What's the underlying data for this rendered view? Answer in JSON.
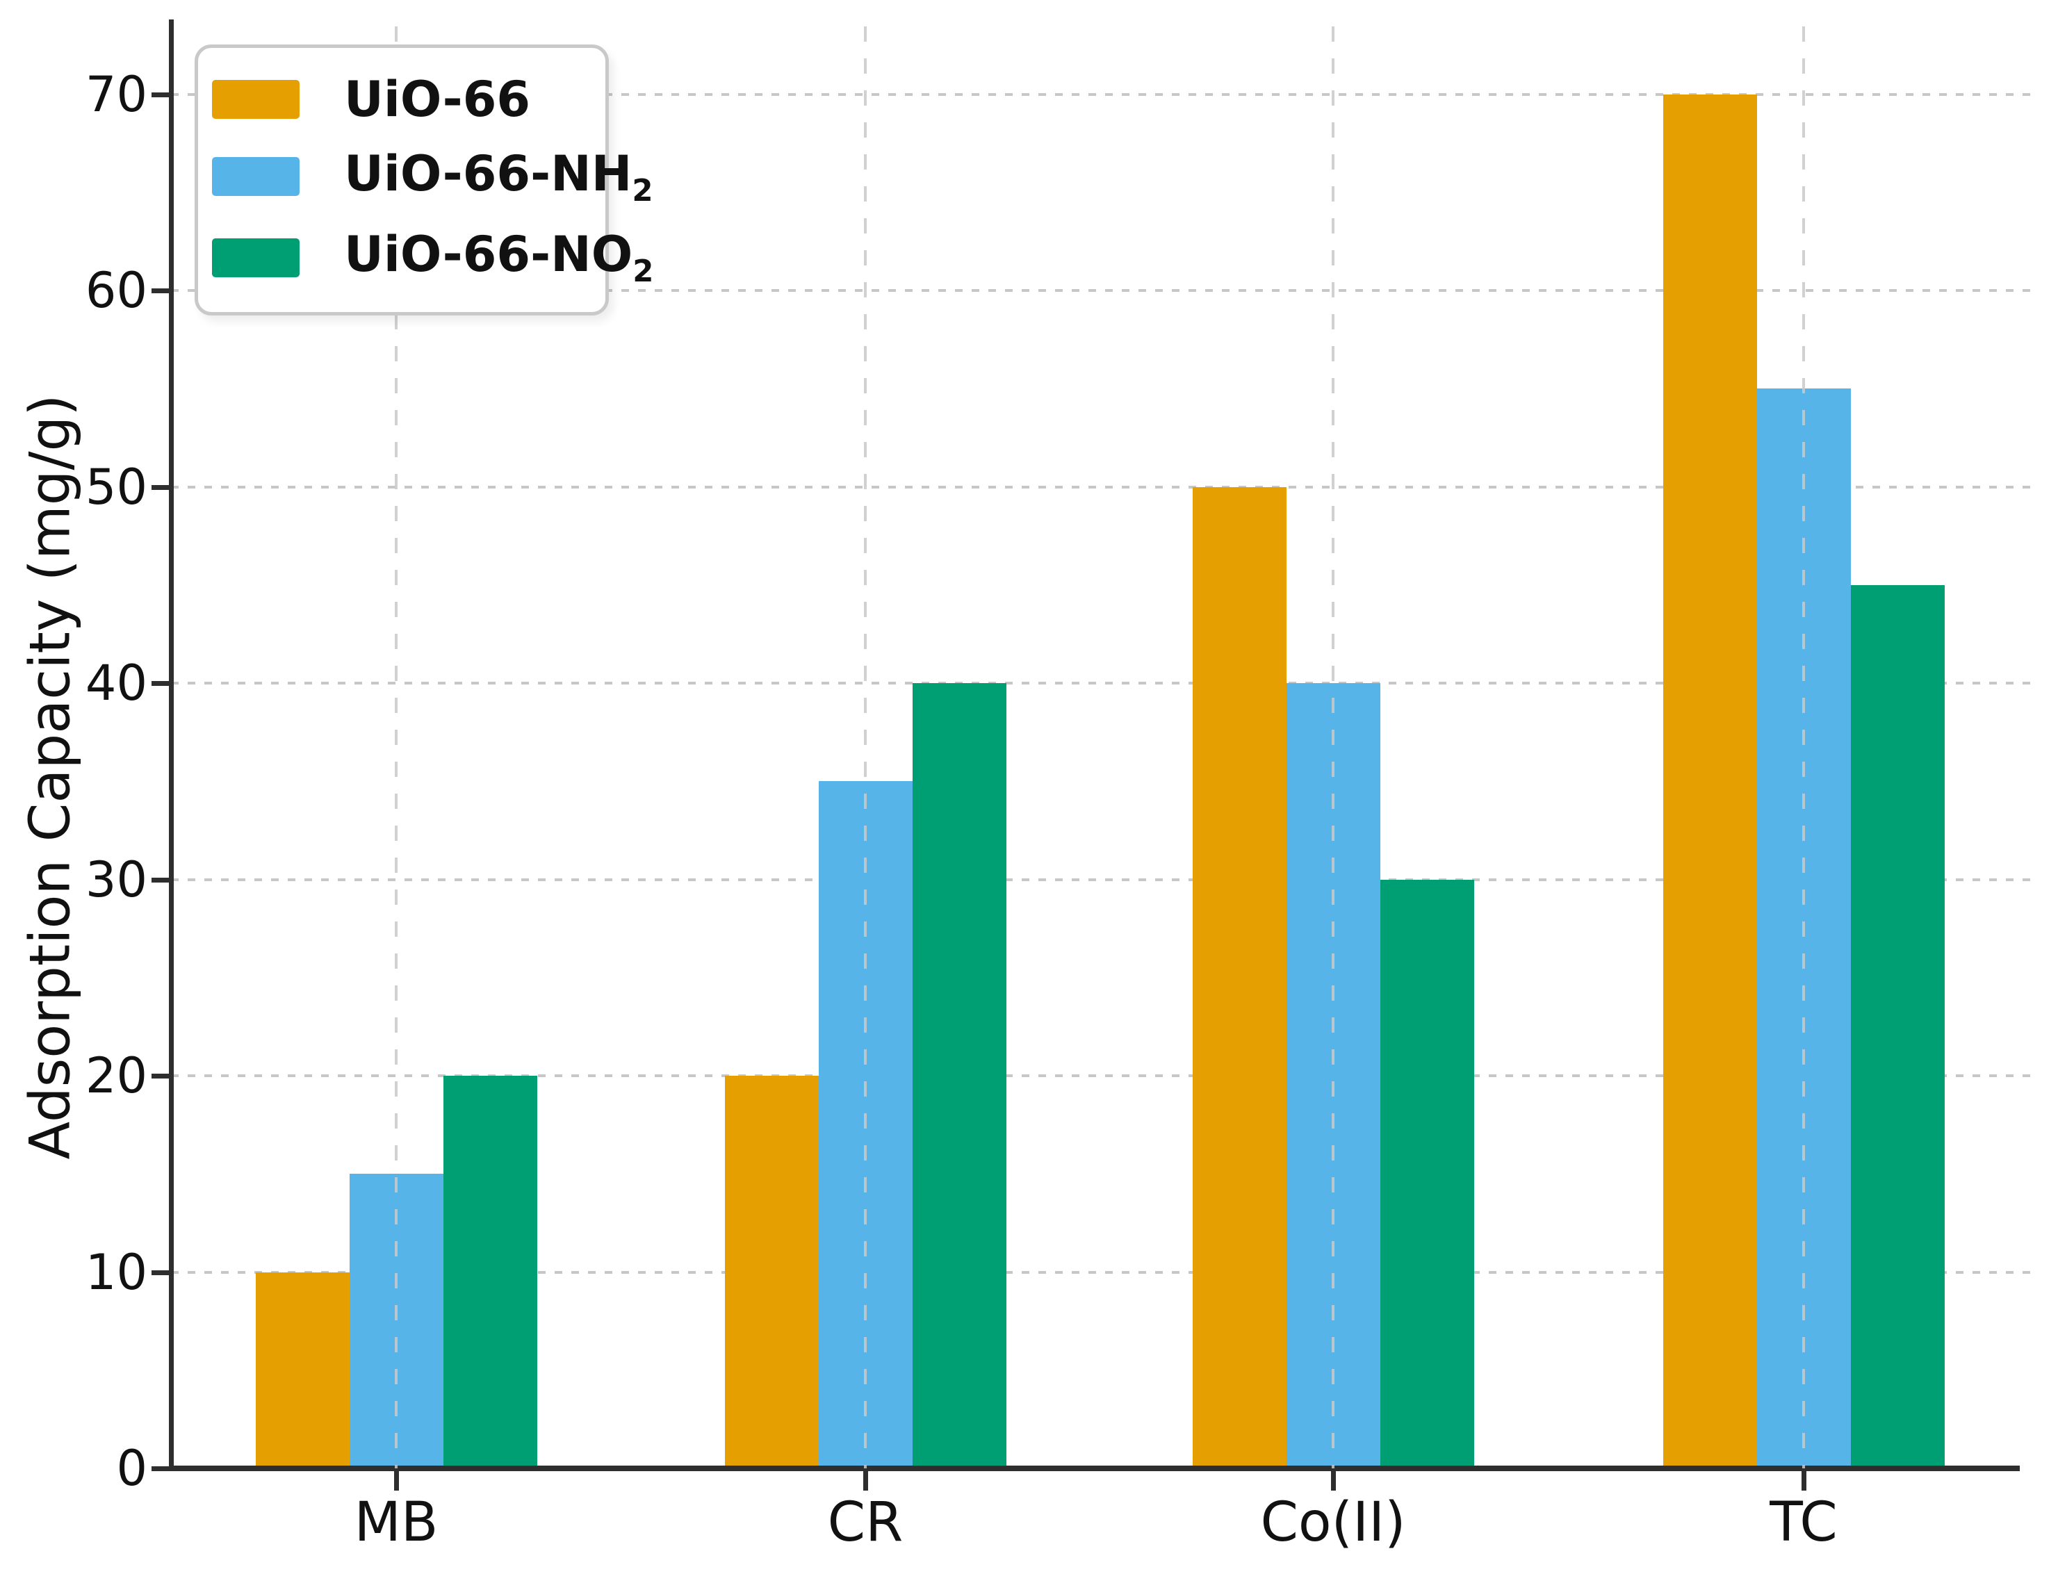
{
  "chart_data": {
    "type": "bar",
    "title": "",
    "xlabel": "",
    "ylabel": "Adsorption Capacity (mg/g)",
    "categories": [
      "MB",
      "CR",
      "Co(II)",
      "TC"
    ],
    "series": [
      {
        "name": "UiO-66",
        "name_sub": "",
        "color": "#E69F00",
        "values": [
          10,
          20,
          50,
          70
        ]
      },
      {
        "name": "UiO-66-NH",
        "name_sub": "2",
        "color": "#56B4E9",
        "values": [
          15,
          35,
          40,
          55
        ]
      },
      {
        "name": "UiO-66-NO",
        "name_sub": "2",
        "color": "#009E73",
        "values": [
          20,
          40,
          30,
          45
        ]
      }
    ],
    "ylim": [
      0,
      70
    ],
    "yticks": [
      0,
      10,
      20,
      30,
      40,
      50,
      60,
      70
    ],
    "grid": "dashed",
    "legend_position": "upper-left",
    "colors": {
      "grid": "#c7c7c7",
      "axis": "#2e2e2e",
      "text": "#111111",
      "background": "#ffffff"
    }
  }
}
